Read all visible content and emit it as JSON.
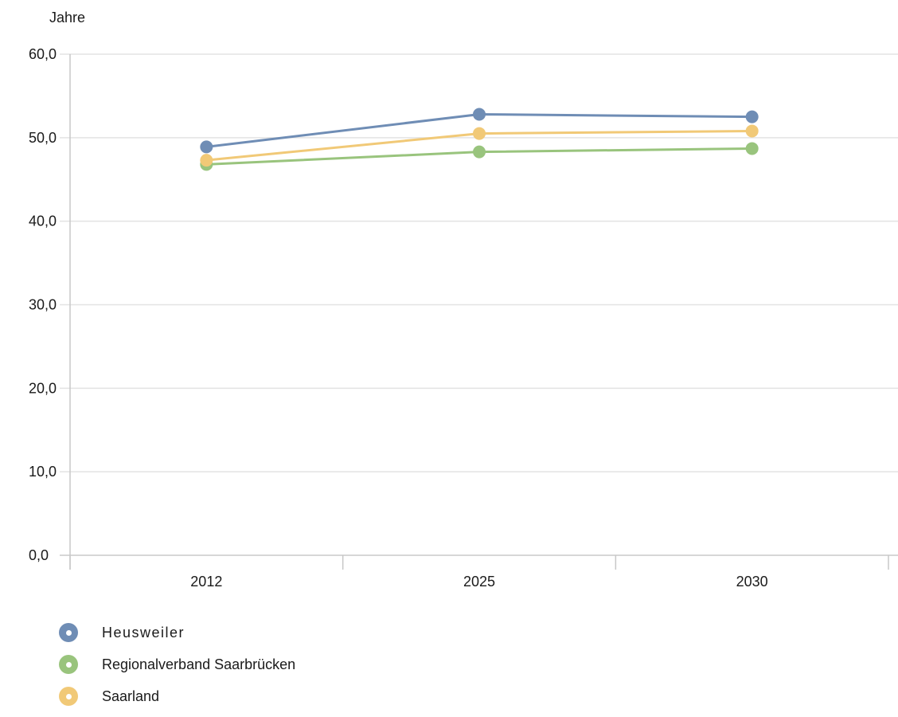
{
  "chart_data": {
    "type": "line",
    "ylabel": "Jahre",
    "xlabel": "",
    "title": "",
    "categories": [
      "2012",
      "2025",
      "2030"
    ],
    "ylim": [
      0,
      60
    ],
    "yticks": [
      "0,0",
      "10,0",
      "20,0",
      "30,0",
      "40,0",
      "50,0",
      "60,0"
    ],
    "grid": true,
    "legend_position": "bottom-left",
    "series": [
      {
        "name": "Heusweiler",
        "color": "#6f8db5",
        "values": [
          48.9,
          52.8,
          52.5
        ]
      },
      {
        "name": "Regionalverband Saarbrücken",
        "color": "#99c47d",
        "values": [
          46.8,
          48.3,
          48.7
        ]
      },
      {
        "name": "Saarland",
        "color": "#f1c977",
        "values": [
          47.3,
          50.5,
          50.8
        ]
      }
    ]
  }
}
